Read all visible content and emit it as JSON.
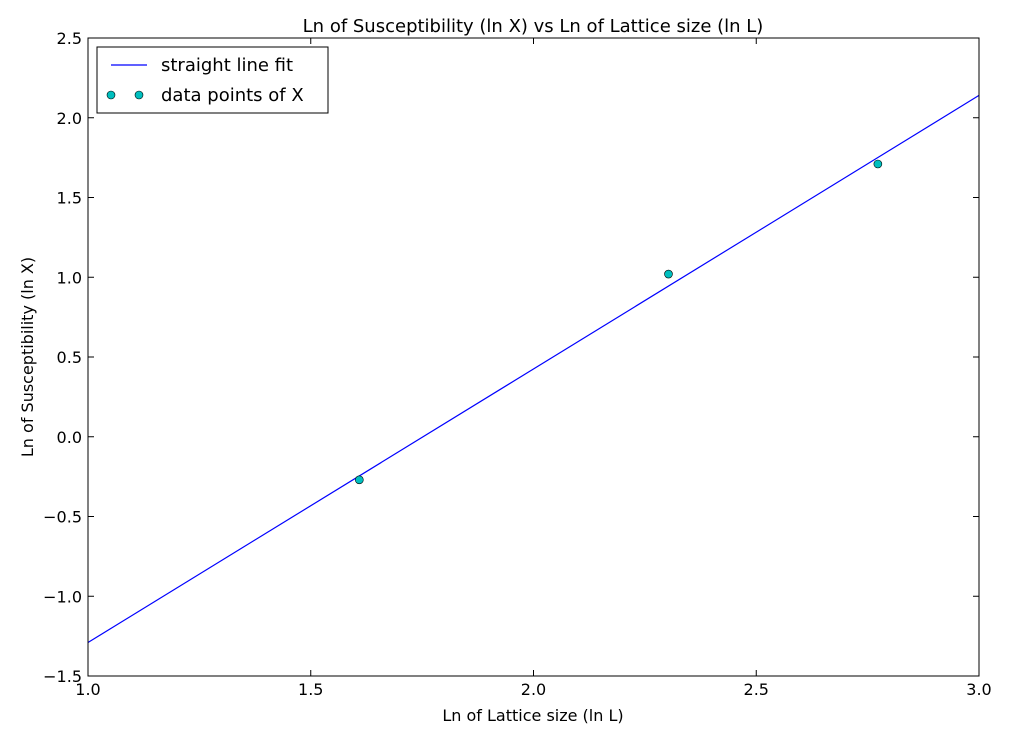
{
  "chart_data": {
    "type": "line",
    "title": "Ln of Susceptibility (ln X) vs Ln of Lattice size (ln L)",
    "xlabel": "Ln of Lattice size (ln L)",
    "ylabel": "Ln of Susceptibility (ln X)",
    "xlim": [
      1.0,
      3.0
    ],
    "ylim": [
      -1.5,
      2.5
    ],
    "xticks": [
      {
        "value": 1.0,
        "label": "1.0"
      },
      {
        "value": 1.5,
        "label": "1.5"
      },
      {
        "value": 2.0,
        "label": "2.0"
      },
      {
        "value": 2.5,
        "label": "2.5"
      },
      {
        "value": 3.0,
        "label": "3.0"
      }
    ],
    "yticks": [
      {
        "value": -1.5,
        "label": "−1.5"
      },
      {
        "value": -1.0,
        "label": "−1.0"
      },
      {
        "value": -0.5,
        "label": "−0.5"
      },
      {
        "value": 0.0,
        "label": "0.0"
      },
      {
        "value": 0.5,
        "label": "0.5"
      },
      {
        "value": 1.0,
        "label": "1.0"
      },
      {
        "value": 1.5,
        "label": "1.5"
      },
      {
        "value": 2.0,
        "label": "2.0"
      },
      {
        "value": 2.5,
        "label": "2.5"
      }
    ],
    "grid": false,
    "legend_position": "top-left",
    "series": [
      {
        "name": "straight line fit",
        "kind": "line",
        "color": "#0000ff",
        "x": [
          1.0,
          3.0
        ],
        "y": [
          -1.29,
          2.14
        ]
      },
      {
        "name": "data points of X",
        "kind": "scatter",
        "color": "#00bfbf",
        "x": [
          1.609,
          2.303,
          2.773
        ],
        "y": [
          -0.27,
          1.02,
          1.71
        ]
      }
    ]
  }
}
